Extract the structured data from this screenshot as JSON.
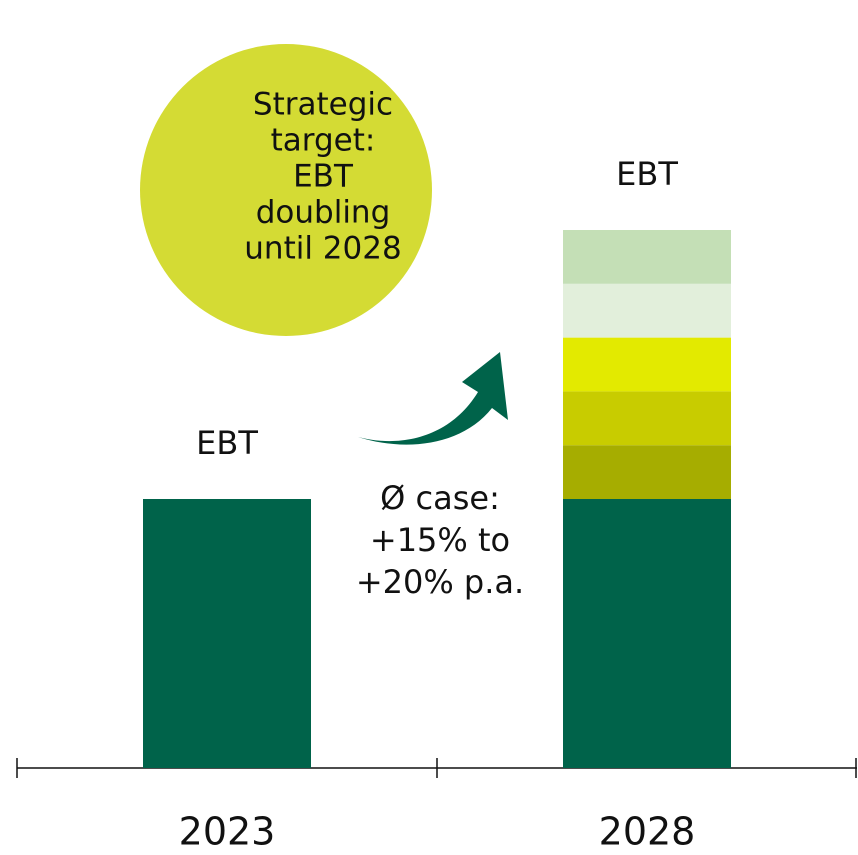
{
  "chart_data": {
    "type": "stacked_bar",
    "categories": [
      "2023",
      "2028"
    ],
    "bar_labels": [
      "EBT",
      "EBT"
    ],
    "series": [
      {
        "color": "#00634a",
        "values": [
          100,
          100
        ]
      },
      {
        "color": "#a6ad00",
        "values": [
          null,
          20
        ]
      },
      {
        "color": "#c8cc00",
        "values": [
          null,
          20
        ]
      },
      {
        "color": "#e3ea00",
        "values": [
          null,
          20
        ]
      },
      {
        "color": "#e2efdb",
        "values": [
          null,
          20
        ]
      },
      {
        "color": "#c4dfb6",
        "values": [
          null,
          20
        ]
      }
    ],
    "target_bubble": {
      "lines": [
        "Strategic",
        "target:",
        "EBT",
        "doubling",
        "until 2028"
      ],
      "color": "#d4db34"
    },
    "growth_note": [
      "Ø case:",
      "+15% to",
      "+20% p.a."
    ],
    "arrow_color": "#00634a"
  }
}
